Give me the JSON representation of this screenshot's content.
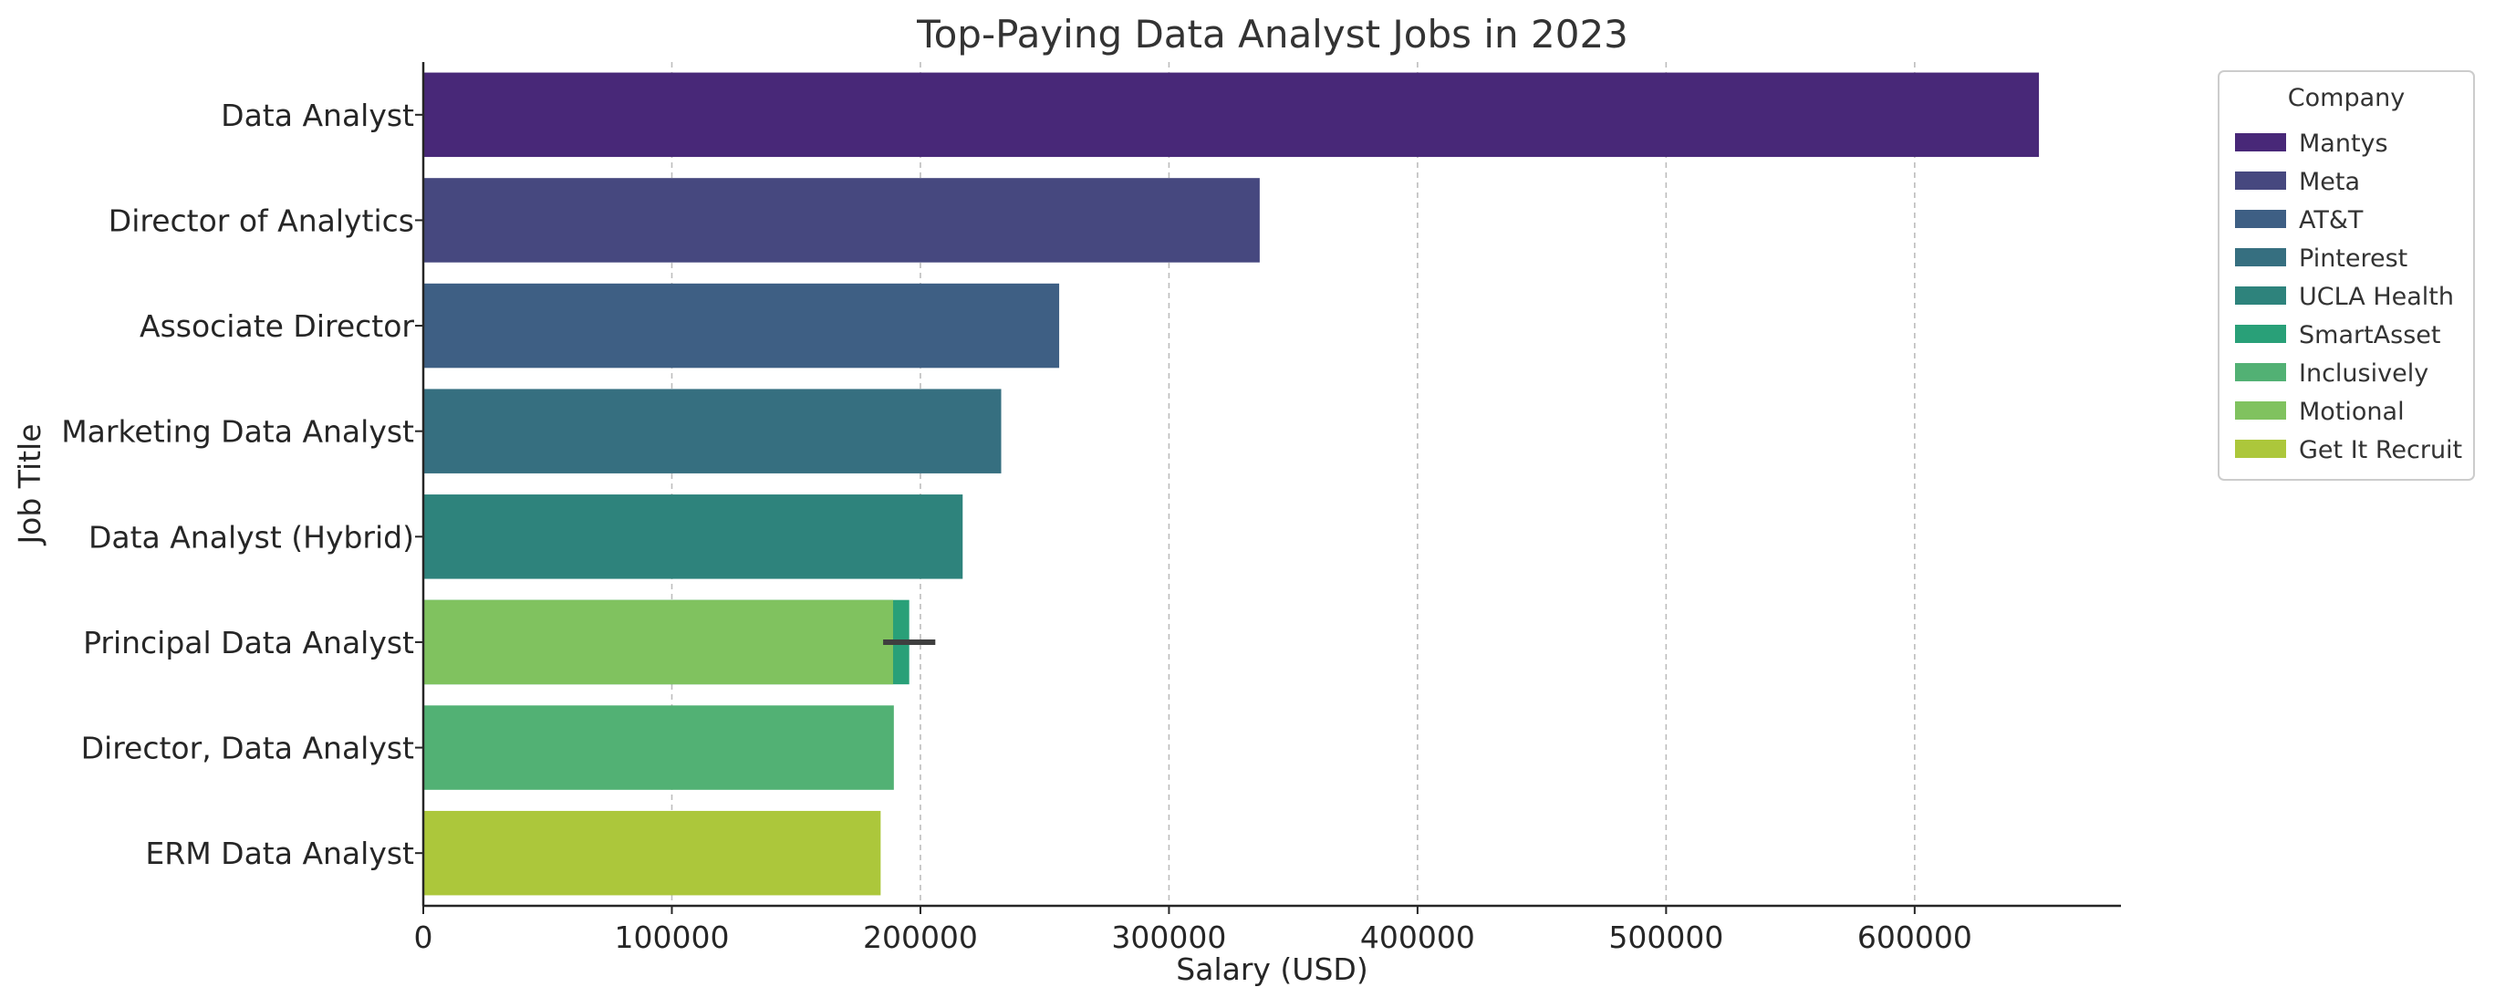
{
  "chart_data": {
    "type": "bar",
    "orientation": "horizontal",
    "title": "Top-Paying Data Analyst Jobs in 2023",
    "xlabel": "Salary (USD)",
    "ylabel": "Job Title",
    "xlim": [
      0,
      683000
    ],
    "xticks": [
      0,
      100000,
      200000,
      300000,
      400000,
      500000,
      600000
    ],
    "xtick_labels": [
      "0",
      "100000",
      "200000",
      "300000",
      "400000",
      "500000",
      "600000"
    ],
    "grid": "x-dashed",
    "categories": [
      "Data Analyst",
      "Director of Analytics",
      "Associate Director",
      "Marketing Data Analyst",
      "Data Analyst (Hybrid)",
      "Principal Data Analyst",
      "Director, Data Analyst",
      "ERM Data Analyst"
    ],
    "bars": [
      {
        "category": "Data Analyst",
        "company": "Mantys",
        "value": 650000
      },
      {
        "category": "Director of Analytics",
        "company": "Meta",
        "value": 336500
      },
      {
        "category": "Associate Director",
        "company": "AT&T",
        "value": 255830
      },
      {
        "category": "Marketing Data Analyst",
        "company": "Pinterest",
        "value": 232500
      },
      {
        "category": "Data Analyst (Hybrid)",
        "company": "UCLA Health",
        "value": 217000
      },
      {
        "category": "Principal Data Analyst",
        "company": "SmartAsset",
        "value": 195500
      },
      {
        "category": "Principal Data Analyst",
        "company": "Motional",
        "value": 189000
      },
      {
        "category": "Director, Data Analyst",
        "company": "Inclusively",
        "value": 189310
      },
      {
        "category": "ERM Data Analyst",
        "company": "Get It Recruit",
        "value": 184000
      }
    ],
    "error_bars": [
      {
        "category": "Principal Data Analyst",
        "low": 185000,
        "high": 206000
      }
    ],
    "legend": {
      "title": "Company",
      "placement": "outside-top-right",
      "entries": [
        {
          "name": "Mantys",
          "color": "#482878"
        },
        {
          "name": "Meta",
          "color": "#46487f"
        },
        {
          "name": "AT&T",
          "color": "#3e5f84"
        },
        {
          "name": "Pinterest",
          "color": "#366f80"
        },
        {
          "name": "UCLA Health",
          "color": "#2e837c"
        },
        {
          "name": "SmartAsset",
          "color": "#29a078"
        },
        {
          "name": "Inclusively",
          "color": "#52b174"
        },
        {
          "name": "Motional",
          "color": "#80c25f"
        },
        {
          "name": "Get It Recruit",
          "color": "#acc73b"
        }
      ]
    }
  }
}
